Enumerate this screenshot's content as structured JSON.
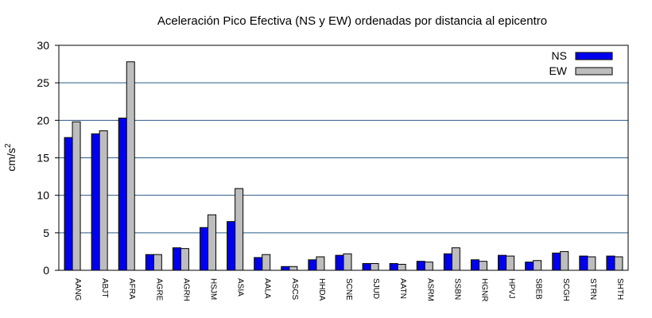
{
  "chart_data": {
    "type": "bar",
    "title": "Aceleración Pico Efectiva (NS y EW) ordenadas por distancia al epicentro",
    "ylabel": "cm/s",
    "ylabel_superscript": "2",
    "xlabel": "",
    "ylim": [
      0,
      30
    ],
    "yticks": [
      0,
      5,
      10,
      15,
      20,
      25,
      30
    ],
    "grid": true,
    "legend_position": "top-right",
    "categories": [
      "AANG",
      "ABJT",
      "AFRA",
      "AGRE",
      "AGRH",
      "HSJM",
      "ASIA",
      "AALA",
      "ASCS",
      "HHDA",
      "SCNE",
      "SJUD",
      "AATN",
      "ASRM",
      "SSBN",
      "HGNR",
      "HPVJ",
      "SBEB",
      "SCGH",
      "STRN",
      "SHTH"
    ],
    "series": [
      {
        "name": "NS",
        "color": "#0000ee",
        "values": [
          17.7,
          18.2,
          20.3,
          2.1,
          3.0,
          5.7,
          6.5,
          1.7,
          0.5,
          1.4,
          2.0,
          0.9,
          0.9,
          1.2,
          2.2,
          1.4,
          2.0,
          1.1,
          2.3,
          1.9,
          1.9
        ]
      },
      {
        "name": "EW",
        "color": "#bdbdbd",
        "values": [
          19.8,
          18.6,
          27.8,
          2.1,
          2.9,
          7.4,
          10.9,
          2.1,
          0.5,
          1.8,
          2.2,
          0.9,
          0.8,
          1.1,
          3.0,
          1.2,
          1.9,
          1.3,
          2.5,
          1.8,
          1.8
        ]
      }
    ]
  }
}
